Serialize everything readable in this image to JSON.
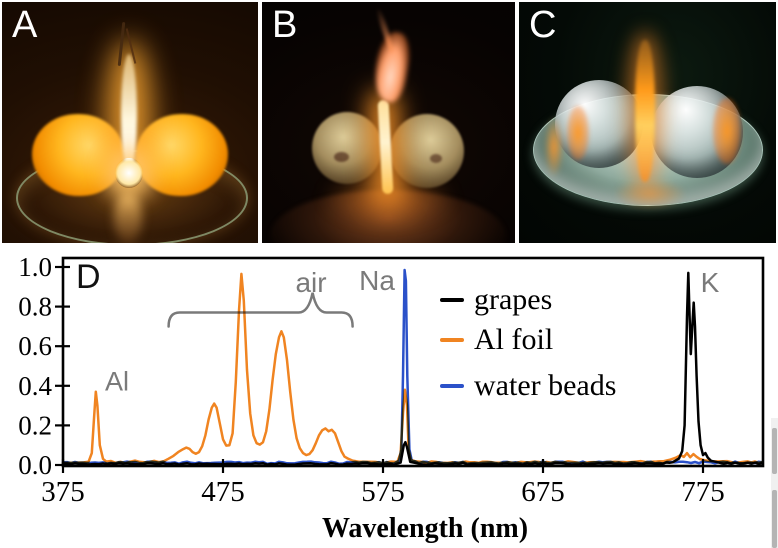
{
  "figure": {
    "panels": [
      {
        "label": "A"
      },
      {
        "label": "B"
      },
      {
        "label": "C"
      }
    ]
  },
  "chart_data": {
    "type": "line",
    "panel_label": "D",
    "xlabel": "Wavelength (nm)",
    "ylabel": "",
    "xlim": [
      375,
      812
    ],
    "ylim": [
      0,
      1.05
    ],
    "x_ticks": [
      375,
      475,
      575,
      675,
      775
    ],
    "y_ticks": [
      "0.0",
      "0.2",
      "0.4",
      "0.6",
      "0.8",
      "1.0"
    ],
    "grid": false,
    "legend_position": "upper right inside",
    "axis_color": "#000000",
    "annotation_color": "#7a7a7a",
    "legend": [
      {
        "label": "grapes",
        "color": "#000000"
      },
      {
        "label": "Al foil",
        "color": "#F08421"
      },
      {
        "label": "water beads",
        "color": "#2B51C9"
      }
    ],
    "annotations": [
      {
        "text": "Al",
        "nm": 403,
        "value": 0.42
      },
      {
        "text": "air",
        "nm": 531,
        "value": 0.92
      },
      {
        "text": "Na",
        "nm": 576,
        "value": 0.93
      },
      {
        "text": "K",
        "nm": 779,
        "value": 0.92
      }
    ],
    "air_bracket": {
      "x_start_nm": 441,
      "x_end_nm": 556,
      "y": 0.77,
      "cusp_nm": 531,
      "cusp_y": 0.87
    },
    "series": [
      {
        "name": "grapes",
        "color": "#000000",
        "noise": 0.004,
        "points": [
          [
            375,
            0.006
          ],
          [
            390,
            0.004
          ],
          [
            405,
            0.007
          ],
          [
            420,
            0.004
          ],
          [
            435,
            0.006
          ],
          [
            450,
            0.005
          ],
          [
            465,
            0.007
          ],
          [
            480,
            0.004
          ],
          [
            495,
            0.006
          ],
          [
            510,
            0.005
          ],
          [
            525,
            0.004
          ],
          [
            540,
            0.006
          ],
          [
            555,
            0.005
          ],
          [
            570,
            0.006
          ],
          [
            582,
            0.005
          ],
          [
            586,
            0.012
          ],
          [
            588,
            0.1
          ],
          [
            589,
            0.115
          ],
          [
            590,
            0.09
          ],
          [
            592,
            0.012
          ],
          [
            596,
            0.006
          ],
          [
            610,
            0.005
          ],
          [
            625,
            0.007
          ],
          [
            640,
            0.004
          ],
          [
            655,
            0.006
          ],
          [
            670,
            0.005
          ],
          [
            685,
            0.006
          ],
          [
            700,
            0.004
          ],
          [
            715,
            0.006
          ],
          [
            730,
            0.005
          ],
          [
            742,
            0.007
          ],
          [
            750,
            0.01
          ],
          [
            756,
            0.015
          ],
          [
            760,
            0.03
          ],
          [
            762,
            0.07
          ],
          [
            763.5,
            0.2
          ],
          [
            765,
            0.75
          ],
          [
            765.8,
            0.97
          ],
          [
            766.6,
            0.75
          ],
          [
            767.4,
            0.56
          ],
          [
            768.3,
            0.7
          ],
          [
            769.2,
            0.82
          ],
          [
            770,
            0.7
          ],
          [
            771,
            0.45
          ],
          [
            772.2,
            0.22
          ],
          [
            773.5,
            0.1
          ],
          [
            775,
            0.05
          ],
          [
            776.5,
            0.06
          ],
          [
            778,
            0.035
          ],
          [
            780,
            0.02
          ],
          [
            783,
            0.012
          ],
          [
            788,
            0.01
          ],
          [
            795,
            0.009
          ],
          [
            803,
            0.01
          ],
          [
            812,
            0.008
          ]
        ]
      },
      {
        "name": "Al foil",
        "color": "#F08421",
        "noise": 0.0035,
        "points": [
          [
            375,
            0.01
          ],
          [
            380,
            0.013
          ],
          [
            384,
            0.01
          ],
          [
            388,
            0.013
          ],
          [
            391,
            0.018
          ],
          [
            393,
            0.06
          ],
          [
            394.5,
            0.25
          ],
          [
            395.5,
            0.37
          ],
          [
            396.5,
            0.3
          ],
          [
            398,
            0.1
          ],
          [
            400,
            0.03
          ],
          [
            402,
            0.016
          ],
          [
            405,
            0.02
          ],
          [
            408,
            0.013
          ],
          [
            411,
            0.017
          ],
          [
            414,
            0.012
          ],
          [
            417,
            0.016
          ],
          [
            420,
            0.02
          ],
          [
            423,
            0.013
          ],
          [
            426,
            0.017
          ],
          [
            429,
            0.014
          ],
          [
            432,
            0.018
          ],
          [
            435,
            0.016
          ],
          [
            438,
            0.022
          ],
          [
            441,
            0.03
          ],
          [
            444,
            0.045
          ],
          [
            447,
            0.065
          ],
          [
            450,
            0.08
          ],
          [
            452,
            0.088
          ],
          [
            454,
            0.082
          ],
          [
            456,
            0.065
          ],
          [
            458,
            0.057
          ],
          [
            460,
            0.065
          ],
          [
            462,
            0.095
          ],
          [
            464,
            0.15
          ],
          [
            466,
            0.23
          ],
          [
            468,
            0.29
          ],
          [
            469.5,
            0.31
          ],
          [
            471,
            0.29
          ],
          [
            473,
            0.21
          ],
          [
            475,
            0.13
          ],
          [
            477,
            0.098
          ],
          [
            479,
            0.1
          ],
          [
            481,
            0.16
          ],
          [
            483,
            0.42
          ],
          [
            485,
            0.78
          ],
          [
            486.5,
            0.965
          ],
          [
            488,
            0.83
          ],
          [
            490,
            0.48
          ],
          [
            492,
            0.26
          ],
          [
            494,
            0.15
          ],
          [
            496,
            0.11
          ],
          [
            498,
            0.103
          ],
          [
            500,
            0.115
          ],
          [
            502,
            0.17
          ],
          [
            504,
            0.28
          ],
          [
            506,
            0.43
          ],
          [
            508,
            0.56
          ],
          [
            510,
            0.645
          ],
          [
            511.5,
            0.675
          ],
          [
            513,
            0.645
          ],
          [
            515,
            0.53
          ],
          [
            517,
            0.37
          ],
          [
            519,
            0.23
          ],
          [
            521,
            0.135
          ],
          [
            523,
            0.085
          ],
          [
            525,
            0.06
          ],
          [
            527,
            0.05
          ],
          [
            529,
            0.055
          ],
          [
            531,
            0.075
          ],
          [
            533,
            0.11
          ],
          [
            535,
            0.15
          ],
          [
            537,
            0.175
          ],
          [
            539,
            0.185
          ],
          [
            541,
            0.17
          ],
          [
            543,
            0.178
          ],
          [
            545,
            0.16
          ],
          [
            547,
            0.115
          ],
          [
            549,
            0.07
          ],
          [
            551,
            0.045
          ],
          [
            553,
            0.03
          ],
          [
            556,
            0.022
          ],
          [
            560,
            0.016
          ],
          [
            565,
            0.013
          ],
          [
            570,
            0.016
          ],
          [
            575,
            0.013
          ],
          [
            580,
            0.014
          ],
          [
            584,
            0.018
          ],
          [
            586,
            0.06
          ],
          [
            587.5,
            0.26
          ],
          [
            588.7,
            0.38
          ],
          [
            590,
            0.3
          ],
          [
            591,
            0.08
          ],
          [
            592.5,
            0.025
          ],
          [
            595,
            0.016
          ],
          [
            600,
            0.013
          ],
          [
            608,
            0.016
          ],
          [
            616,
            0.012
          ],
          [
            624,
            0.015
          ],
          [
            632,
            0.012
          ],
          [
            640,
            0.016
          ],
          [
            648,
            0.012
          ],
          [
            656,
            0.015
          ],
          [
            664,
            0.012
          ],
          [
            672,
            0.016
          ],
          [
            680,
            0.013
          ],
          [
            688,
            0.016
          ],
          [
            696,
            0.012
          ],
          [
            704,
            0.015
          ],
          [
            712,
            0.013
          ],
          [
            720,
            0.017
          ],
          [
            728,
            0.013
          ],
          [
            736,
            0.016
          ],
          [
            744,
            0.018
          ],
          [
            750,
            0.022
          ],
          [
            754,
            0.028
          ],
          [
            758,
            0.035
          ],
          [
            761,
            0.05
          ],
          [
            763,
            0.038
          ],
          [
            765,
            0.06
          ],
          [
            767,
            0.042
          ],
          [
            769,
            0.055
          ],
          [
            771,
            0.04
          ],
          [
            773,
            0.028
          ],
          [
            776,
            0.022
          ],
          [
            780,
            0.018
          ],
          [
            785,
            0.016
          ],
          [
            790,
            0.018
          ],
          [
            796,
            0.014
          ],
          [
            803,
            0.016
          ],
          [
            812,
            0.013
          ]
        ]
      },
      {
        "name": "water beads",
        "color": "#2B51C9",
        "noise": 0.005,
        "points": [
          [
            375,
            0.012
          ],
          [
            385,
            0.01
          ],
          [
            395,
            0.013
          ],
          [
            405,
            0.01
          ],
          [
            415,
            0.013
          ],
          [
            425,
            0.011
          ],
          [
            435,
            0.014
          ],
          [
            445,
            0.01
          ],
          [
            455,
            0.013
          ],
          [
            465,
            0.011
          ],
          [
            475,
            0.014
          ],
          [
            485,
            0.011
          ],
          [
            495,
            0.013
          ],
          [
            505,
            0.01
          ],
          [
            515,
            0.013
          ],
          [
            525,
            0.011
          ],
          [
            535,
            0.014
          ],
          [
            545,
            0.011
          ],
          [
            555,
            0.013
          ],
          [
            565,
            0.01
          ],
          [
            575,
            0.013
          ],
          [
            582,
            0.012
          ],
          [
            585,
            0.02
          ],
          [
            586.5,
            0.08
          ],
          [
            587.5,
            0.45
          ],
          [
            588.5,
            0.985
          ],
          [
            589.3,
            0.93
          ],
          [
            590.2,
            0.45
          ],
          [
            591.5,
            0.08
          ],
          [
            593,
            0.025
          ],
          [
            595,
            0.014
          ],
          [
            605,
            0.012
          ],
          [
            615,
            0.014
          ],
          [
            625,
            0.011
          ],
          [
            635,
            0.013
          ],
          [
            645,
            0.011
          ],
          [
            655,
            0.014
          ],
          [
            665,
            0.011
          ],
          [
            675,
            0.013
          ],
          [
            685,
            0.011
          ],
          [
            695,
            0.014
          ],
          [
            705,
            0.011
          ],
          [
            715,
            0.013
          ],
          [
            725,
            0.011
          ],
          [
            735,
            0.014
          ],
          [
            745,
            0.011
          ],
          [
            755,
            0.013
          ],
          [
            765,
            0.012
          ],
          [
            775,
            0.013
          ],
          [
            785,
            0.011
          ],
          [
            795,
            0.013
          ],
          [
            805,
            0.011
          ],
          [
            812,
            0.012
          ]
        ]
      }
    ]
  }
}
